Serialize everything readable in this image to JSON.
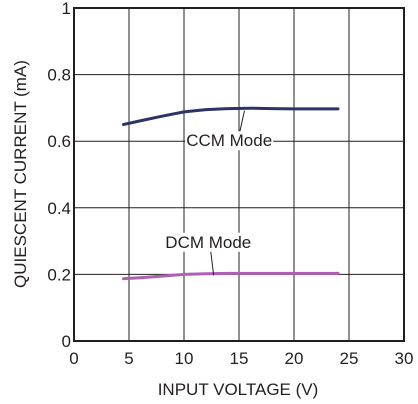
{
  "chart_data": {
    "type": "line",
    "title": "",
    "xlabel": "INPUT VOLTAGE (V)",
    "ylabel": "QUIESCENT CURRENT (mA)",
    "xlim": [
      0,
      30
    ],
    "ylim": [
      0,
      1
    ],
    "xticks": [
      0,
      5,
      10,
      15,
      20,
      25,
      30
    ],
    "yticks": [
      0,
      0.2,
      0.4,
      0.6,
      0.8,
      1
    ],
    "xtick_labels": [
      "0",
      "5",
      "10",
      "15",
      "20",
      "25",
      "30"
    ],
    "ytick_labels": [
      "0",
      "0.2",
      "0.4",
      "0.6",
      "0.8",
      "1"
    ],
    "grid": true,
    "series": [
      {
        "name": "CCM Mode",
        "color": "#2b3467",
        "x": [
          4.5,
          6,
          8,
          10,
          12,
          14,
          16,
          18,
          20,
          22,
          24
        ],
        "y": [
          0.65,
          0.661,
          0.675,
          0.688,
          0.695,
          0.698,
          0.699,
          0.698,
          0.697,
          0.697,
          0.697
        ]
      },
      {
        "name": "DCM Mode",
        "color": "#b05fb6",
        "x": [
          4.5,
          6,
          8,
          10,
          12,
          14,
          16,
          18,
          20,
          22,
          24
        ],
        "y": [
          0.187,
          0.19,
          0.195,
          0.2,
          0.202,
          0.203,
          0.203,
          0.203,
          0.203,
          0.203,
          0.203
        ]
      }
    ],
    "annotations": [
      {
        "text": "CCM Mode",
        "x": 10.2,
        "y": 0.585,
        "pointer_x": 15.5,
        "pointer_y": 0.698
      },
      {
        "text": "DCM Mode",
        "x": 8.3,
        "y": 0.28,
        "pointer_x": 12.7,
        "pointer_y": 0.203
      }
    ]
  }
}
